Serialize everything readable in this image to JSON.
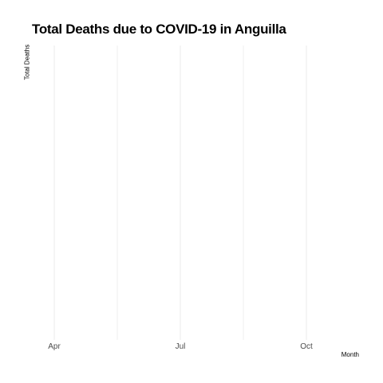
{
  "chart_data": {
    "type": "line",
    "title": "Total Deaths due to COVID-19 in Anguilla",
    "xlabel": "Month",
    "ylabel": "Total Deaths",
    "x_ticks": [
      "Apr",
      "Jul",
      "Oct"
    ],
    "series": [],
    "grid": true,
    "legend": "none",
    "colors": {
      "grid": "#ebebeb",
      "tick_text": "#4d4d4d",
      "text": "#000000"
    }
  }
}
